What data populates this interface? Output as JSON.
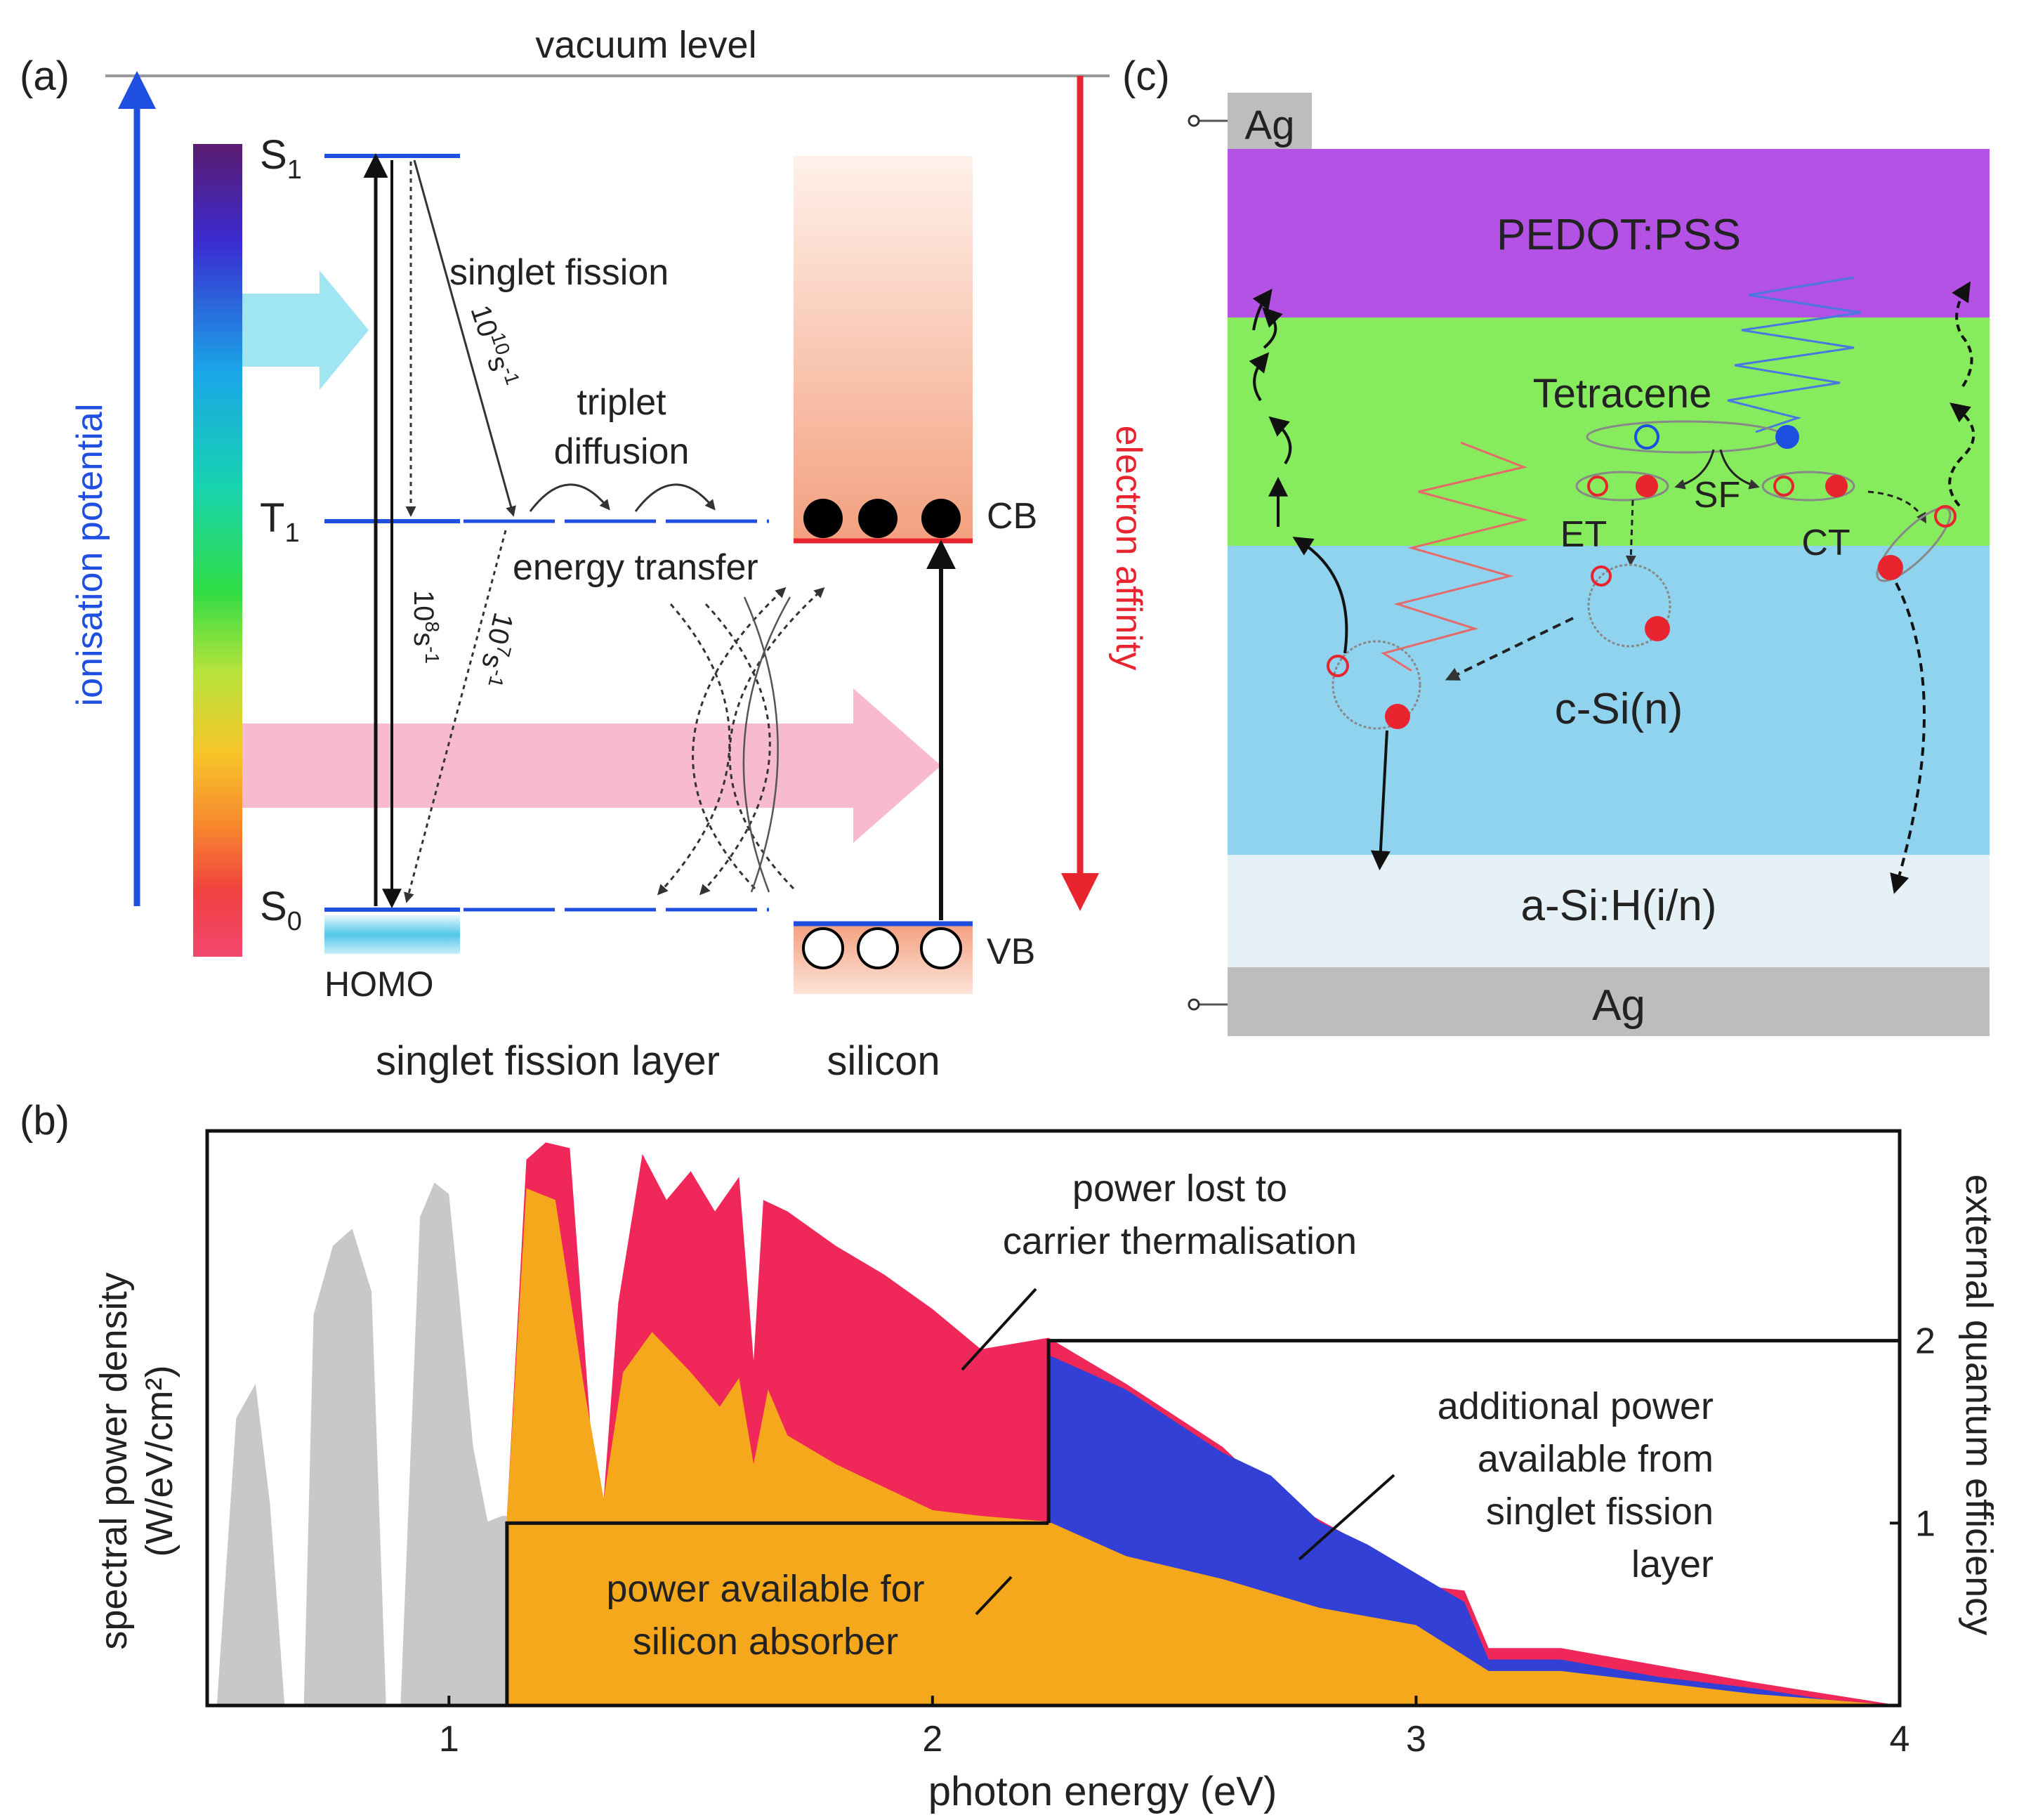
{
  "colors": {
    "blue": "#1f4fe0",
    "red": "#e8242f",
    "gray": "#c8c8c8",
    "orange": "#f5a81c",
    "crimson": "#f0285a",
    "indigo": "#3340d6",
    "pedot": "#b452e6",
    "tetracene": "#86ec5e",
    "csi": "#8fd3ef",
    "asih": "#e5f1f7",
    "ag": "#bdbdbd",
    "pink_arrow": "#f7b6cc",
    "cyan_arrow": "#9fe6f2"
  },
  "panel_a": {
    "label": "(a)",
    "vacuum_level": "vacuum level",
    "ionisation_potential": "ionisation potential",
    "electron_affinity": "electron affinity",
    "s1": "S",
    "s1_sub": "1",
    "t1": "T",
    "t1_sub": "1",
    "s0": "S",
    "s0_sub": "0",
    "homo": "HOMO",
    "singlet_fission": "singlet fission",
    "rate_sf": "10",
    "rate_sf_exp": "10",
    "rate_sf_unit": "s",
    "rate_sf_unit_exp": "-1",
    "triplet": "triplet",
    "diffusion": "diffusion",
    "energy_transfer": "energy transfer",
    "rate_s1": "10",
    "rate_s1_exp": "8",
    "rate_s1_unit": "s",
    "rate_s1_unit_exp": "-1",
    "rate_t1": "10",
    "rate_t1_exp": "7",
    "rate_t1_unit": "s",
    "rate_t1_unit_exp": "-1",
    "cb": "CB",
    "vb": "VB",
    "layer_label": "singlet fission layer",
    "silicon_label": "silicon"
  },
  "panel_b": {
    "label": "(b)",
    "ylabel_left_1": "spectral power density",
    "ylabel_left_2": "(W/eV/cm²)",
    "ylabel_right": "external quantum efficiency",
    "xlabel": "photon energy (eV)",
    "x_ticks": [
      "1",
      "2",
      "3",
      "4"
    ],
    "y_right_ticks": [
      "1",
      "2"
    ],
    "annotation_thermal_1": "power lost to",
    "annotation_thermal_2": "carrier thermalisation",
    "annotation_additional_1": "additional power",
    "annotation_additional_2": "available from",
    "annotation_additional_3": "singlet fission",
    "annotation_additional_4": "layer",
    "annotation_silicon_1": "power available for",
    "annotation_silicon_2": "silicon absorber"
  },
  "panel_c": {
    "label": "(c)",
    "ag_top": "Ag",
    "pedot": "PEDOT:PSS",
    "tetracene": "Tetracene",
    "sf": "SF",
    "et": "ET",
    "ct": "CT",
    "csi": "c-Si(n)",
    "asih": "a-Si:H(i/n)",
    "ag_bottom": "Ag"
  },
  "chart_data": {
    "type": "area",
    "title": "",
    "xlabel": "photon energy (eV)",
    "ylabel": "spectral power density (W/eV/cm²)",
    "ylabel_right": "external quantum efficiency",
    "xlim": [
      0.5,
      4.0
    ],
    "ylim": [
      0,
      1.0
    ],
    "ylim_right": [
      0,
      3.15
    ],
    "x_ticks": [
      1,
      2,
      3,
      4
    ],
    "y_right_ticks": [
      1,
      2
    ],
    "silicon_bandgap_eV": 1.12,
    "tetracene_singlet_eV": 2.24,
    "series": [
      {
        "name": "solar spectrum below silicon bandgap (unused)",
        "color": "gray",
        "x": [
          0.52,
          0.56,
          0.6,
          0.63,
          0.66,
          0.7,
          0.72,
          0.76,
          0.8,
          0.84,
          0.87,
          0.9,
          0.94,
          0.97,
          1.0,
          1.02,
          1.05,
          1.08,
          1.11,
          1.12
        ],
        "values": [
          0.0,
          0.5,
          0.56,
          0.35,
          0.0,
          0.0,
          0.68,
          0.8,
          0.83,
          0.72,
          0.0,
          0.0,
          0.85,
          0.91,
          0.89,
          0.72,
          0.45,
          0.32,
          0.33,
          0.33
        ]
      },
      {
        "name": "power lost to carrier thermalisation (total spectrum above bandgap)",
        "color": "crimson",
        "x": [
          1.12,
          1.16,
          1.2,
          1.25,
          1.3,
          1.32,
          1.35,
          1.4,
          1.45,
          1.5,
          1.55,
          1.6,
          1.63,
          1.65,
          1.7,
          1.8,
          1.9,
          2.0,
          2.1,
          2.24,
          2.4,
          2.6,
          2.7,
          2.85,
          2.92,
          3.0,
          3.1,
          3.15,
          3.3,
          3.5,
          3.7,
          3.85,
          4.0
        ],
        "values": [
          0.33,
          0.95,
          0.98,
          0.97,
          0.4,
          0.36,
          0.7,
          0.96,
          0.88,
          0.93,
          0.86,
          0.92,
          0.6,
          0.88,
          0.86,
          0.8,
          0.75,
          0.69,
          0.62,
          0.64,
          0.56,
          0.45,
          0.37,
          0.3,
          0.22,
          0.21,
          0.2,
          0.1,
          0.1,
          0.07,
          0.04,
          0.02,
          0.0
        ]
      },
      {
        "name": "additional power available from singlet fission layer",
        "color": "indigo",
        "x": [
          2.24,
          2.4,
          2.6,
          2.7,
          2.8,
          2.9,
          3.0,
          3.1,
          3.15,
          3.3,
          3.5,
          3.7,
          3.85,
          4.0
        ],
        "values": [
          0.61,
          0.55,
          0.44,
          0.4,
          0.32,
          0.28,
          0.23,
          0.18,
          0.08,
          0.08,
          0.05,
          0.03,
          0.01,
          0.0
        ]
      },
      {
        "name": "power available for silicon absorber",
        "color": "orange",
        "x": [
          1.12,
          1.16,
          1.22,
          1.28,
          1.32,
          1.36,
          1.42,
          1.5,
          1.56,
          1.6,
          1.63,
          1.66,
          1.7,
          1.8,
          1.9,
          2.0,
          2.1,
          2.24,
          2.4,
          2.6,
          2.8,
          3.0,
          3.15,
          3.3,
          3.5,
          3.7,
          3.85,
          4.0
        ],
        "values": [
          0.33,
          0.9,
          0.88,
          0.55,
          0.36,
          0.58,
          0.65,
          0.58,
          0.52,
          0.57,
          0.42,
          0.55,
          0.47,
          0.42,
          0.38,
          0.34,
          0.33,
          0.32,
          0.26,
          0.22,
          0.17,
          0.14,
          0.06,
          0.06,
          0.04,
          0.02,
          0.01,
          0.0
        ]
      }
    ],
    "eqe_silicon_only": {
      "x": [
        1.12,
        2.24
      ],
      "values": [
        1,
        1
      ]
    },
    "eqe_with_singlet_fission": {
      "x": [
        2.24,
        4.0
      ],
      "values": [
        2,
        2
      ]
    }
  }
}
